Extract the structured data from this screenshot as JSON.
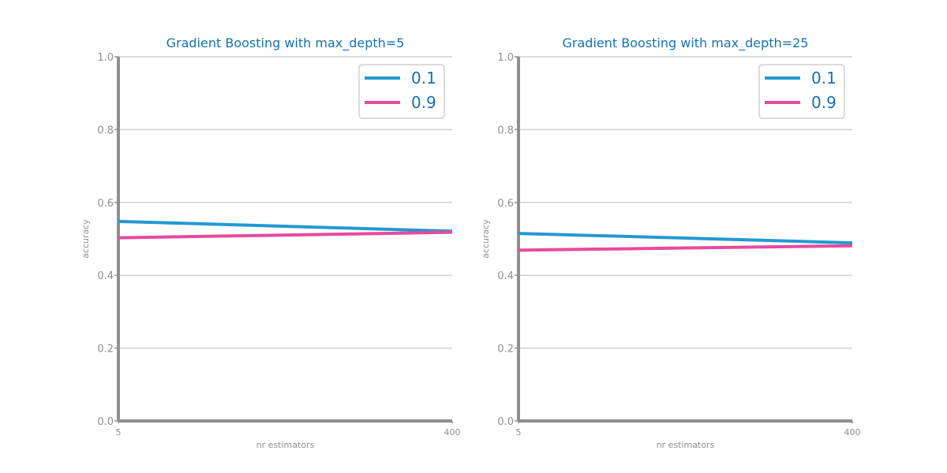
{
  "chart_data": [
    {
      "type": "line",
      "title": "Gradient Boosting with max_depth=5",
      "xlabel": "nr estimators",
      "ylabel": "accuracy",
      "x": [
        5,
        400
      ],
      "x_tick_labels": [
        "5",
        "400"
      ],
      "y_tick_labels": [
        "0.0",
        "0.2",
        "0.4",
        "0.6",
        "0.8",
        "1.0"
      ],
      "ylim": [
        0,
        1
      ],
      "grid": "horizontal",
      "legend": "top-right",
      "series": [
        {
          "name": "0.1",
          "values": [
            0.548,
            0.521
          ],
          "color": "#2399d2"
        },
        {
          "name": "0.9",
          "values": [
            0.503,
            0.518
          ],
          "color": "#e84a9c"
        }
      ]
    },
    {
      "type": "line",
      "title": "Gradient Boosting with max_depth=25",
      "xlabel": "nr estimators",
      "ylabel": "accuracy",
      "x": [
        5,
        400
      ],
      "x_tick_labels": [
        "5",
        "400"
      ],
      "y_tick_labels": [
        "0.0",
        "0.2",
        "0.4",
        "0.6",
        "0.8",
        "1.0"
      ],
      "ylim": [
        0,
        1
      ],
      "grid": "horizontal",
      "legend": "top-right",
      "series": [
        {
          "name": "0.1",
          "values": [
            0.515,
            0.489
          ],
          "color": "#2399d2"
        },
        {
          "name": "0.9",
          "values": [
            0.469,
            0.481
          ],
          "color": "#e84a9c"
        }
      ]
    }
  ],
  "colors": {
    "title": "#1573ad",
    "axis": "#8f8f8f",
    "grid": "#d0d0d0",
    "tick_text": "#8f8f8f",
    "legend_text": "#1573ad",
    "legend_border": "#d0d0d0"
  }
}
